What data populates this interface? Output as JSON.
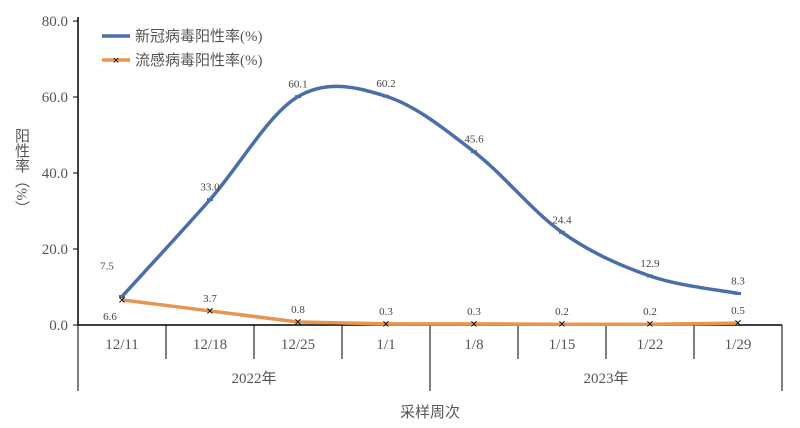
{
  "chart_data": {
    "type": "line",
    "title": "",
    "xlabel": "采样周次",
    "ylabel": "阳性率（%）",
    "ylim": [
      0,
      80
    ],
    "yticks": [
      "0.0",
      "20.0",
      "40.0",
      "60.0",
      "80.0"
    ],
    "categories": [
      "12/11",
      "12/18",
      "12/25",
      "1/1",
      "1/8",
      "1/15",
      "1/22",
      "1/29"
    ],
    "groups": [
      {
        "label": "2022年",
        "span": 4
      },
      {
        "label": "2023年",
        "span": 4
      }
    ],
    "grid": false,
    "legend": "top-left",
    "series": [
      {
        "name": "新冠病毒阳性率(%)",
        "color": "#4a6fa8",
        "smooth": true,
        "marker": "dash",
        "values": [
          7.5,
          33.0,
          60.1,
          60.2,
          45.6,
          24.4,
          12.9,
          8.3
        ],
        "labels": [
          "7.5",
          "33.0",
          "60.1",
          "60.2",
          "45.6",
          "24.4",
          "12.9",
          "8.3"
        ]
      },
      {
        "name": "流感病毒阳性率(%)",
        "color": "#e8954f",
        "smooth": false,
        "marker": "x",
        "values": [
          6.6,
          3.7,
          0.8,
          0.3,
          0.3,
          0.2,
          0.2,
          0.5
        ],
        "labels": [
          "6.6",
          "3.7",
          "0.8",
          "0.3",
          "0.3",
          "0.2",
          "0.2",
          "0.5"
        ]
      }
    ]
  }
}
